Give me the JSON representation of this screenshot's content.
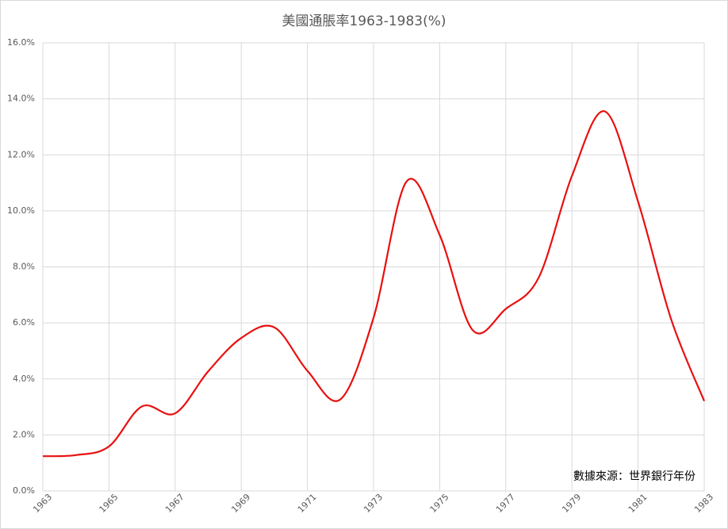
{
  "chart_data": {
    "type": "line",
    "title": "美國通脹率1963-1983(%)",
    "x": [
      1963,
      1964,
      1965,
      1966,
      1967,
      1968,
      1969,
      1970,
      1971,
      1972,
      1973,
      1974,
      1975,
      1976,
      1977,
      1978,
      1979,
      1980,
      1981,
      1982,
      1983
    ],
    "series": [
      {
        "name": "通脹率",
        "color": "#e8100f",
        "values": [
          1.24,
          1.28,
          1.59,
          3.02,
          2.77,
          4.27,
          5.46,
          5.84,
          4.29,
          3.27,
          6.18,
          11.05,
          9.14,
          5.74,
          6.5,
          7.63,
          11.25,
          13.55,
          10.33,
          6.13,
          3.21
        ]
      }
    ],
    "xlim": [
      1963,
      1983
    ],
    "xticks": [
      1963,
      1965,
      1967,
      1969,
      1971,
      1973,
      1975,
      1977,
      1979,
      1981,
      1983
    ],
    "ylim": [
      0,
      16
    ],
    "yticks": [
      {
        "value": 0,
        "label": "0.0%"
      },
      {
        "value": 2,
        "label": "2.0%"
      },
      {
        "value": 4,
        "label": "4.0%"
      },
      {
        "value": 6,
        "label": "6.0%"
      },
      {
        "value": 8,
        "label": "8.0%"
      },
      {
        "value": 10,
        "label": "10.0%"
      },
      {
        "value": 12,
        "label": "12.0%"
      },
      {
        "value": 14,
        "label": "14.0%"
      },
      {
        "value": 16,
        "label": "16.0%"
      }
    ],
    "grid": true,
    "annotation": "數據來源：世界銀行年份"
  }
}
